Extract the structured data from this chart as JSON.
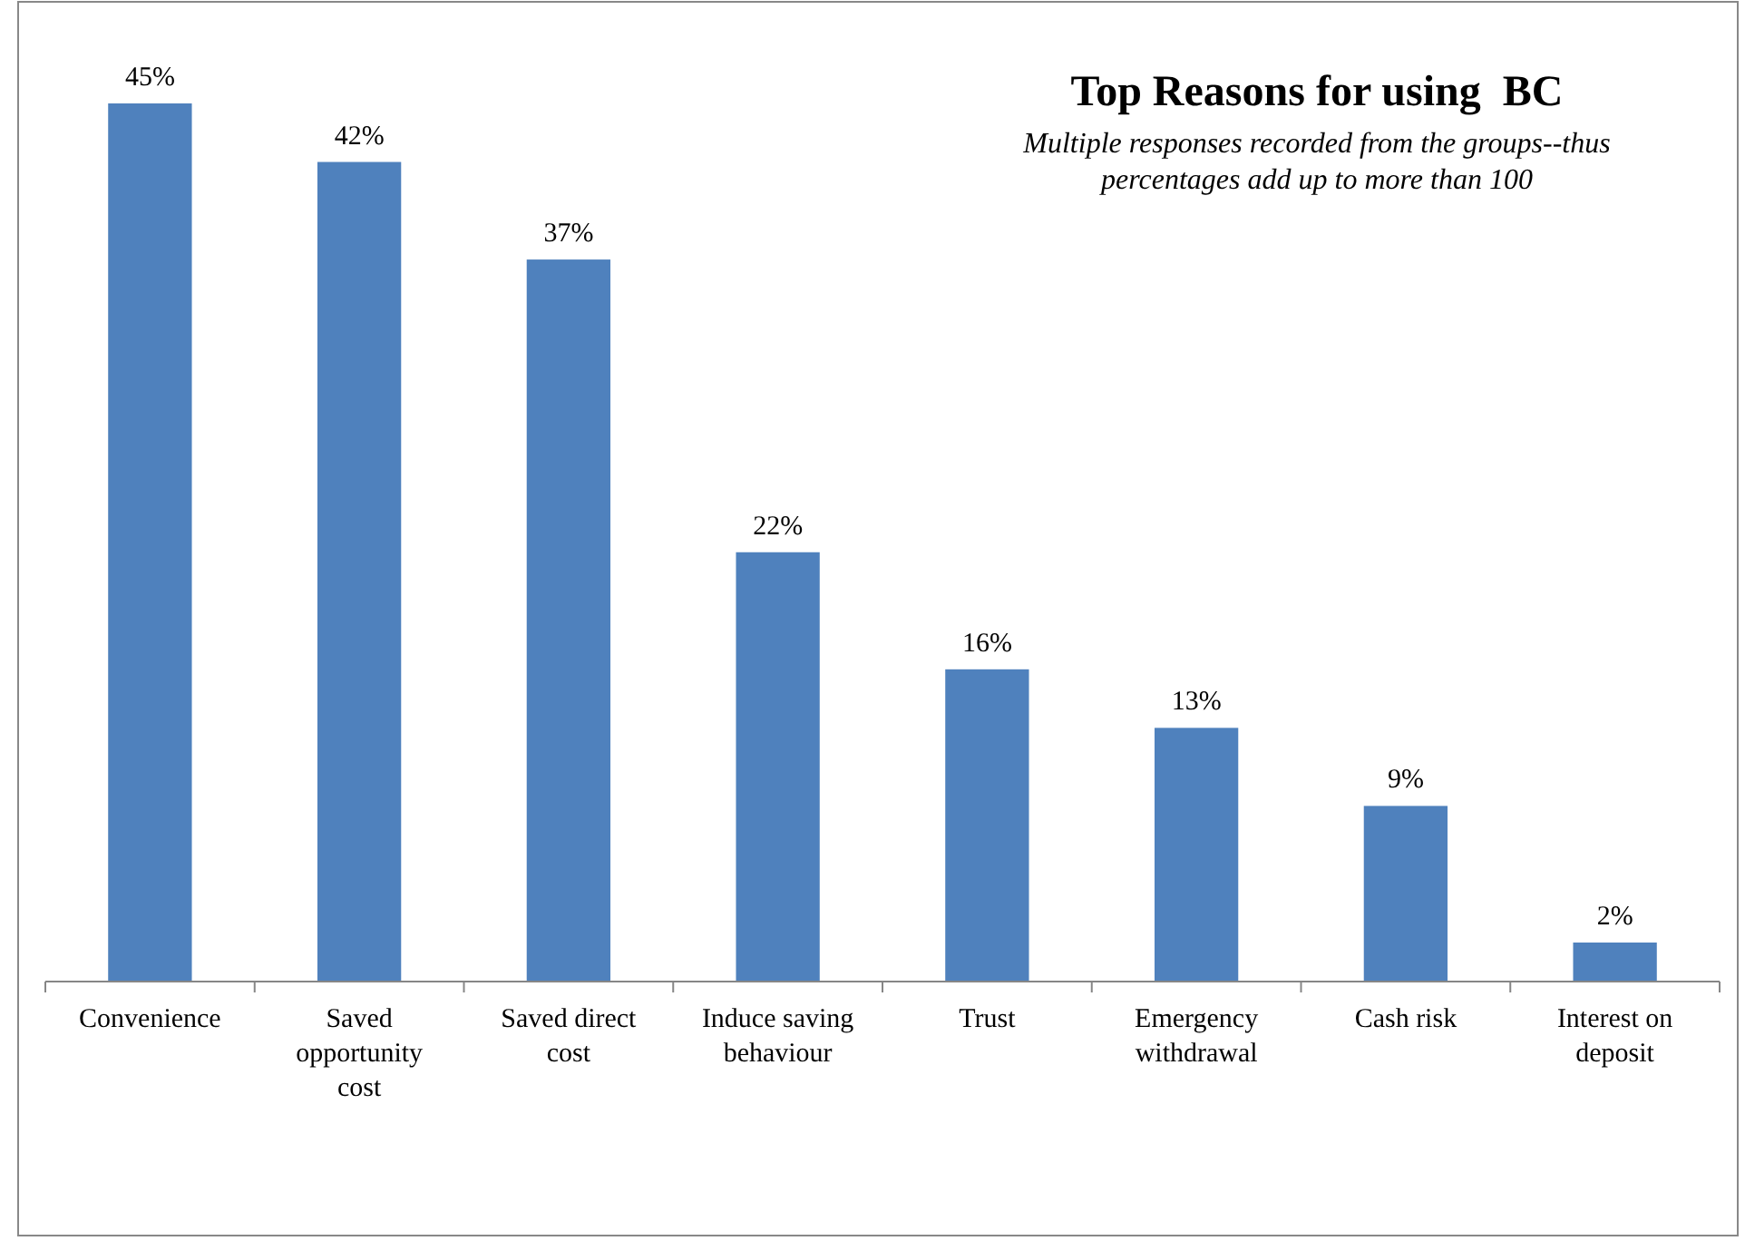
{
  "chart_data": {
    "type": "bar",
    "title": "Top Reasons for using  BC",
    "subtitle": "Multiple responses recorded from the groups--thus percentages add up to more than 100",
    "categories": [
      "Convenience",
      "Saved opportunity cost",
      "Saved direct cost",
      "Induce saving behaviour",
      "Trust",
      "Emergency withdrawal",
      "Cash risk",
      "Interest on deposit"
    ],
    "values": [
      45,
      42,
      37,
      22,
      16,
      13,
      9,
      2
    ],
    "value_labels": [
      "45%",
      "42%",
      "37%",
      "22%",
      "16%",
      "13%",
      "9%",
      "2%"
    ],
    "color": "#4f81bd"
  }
}
